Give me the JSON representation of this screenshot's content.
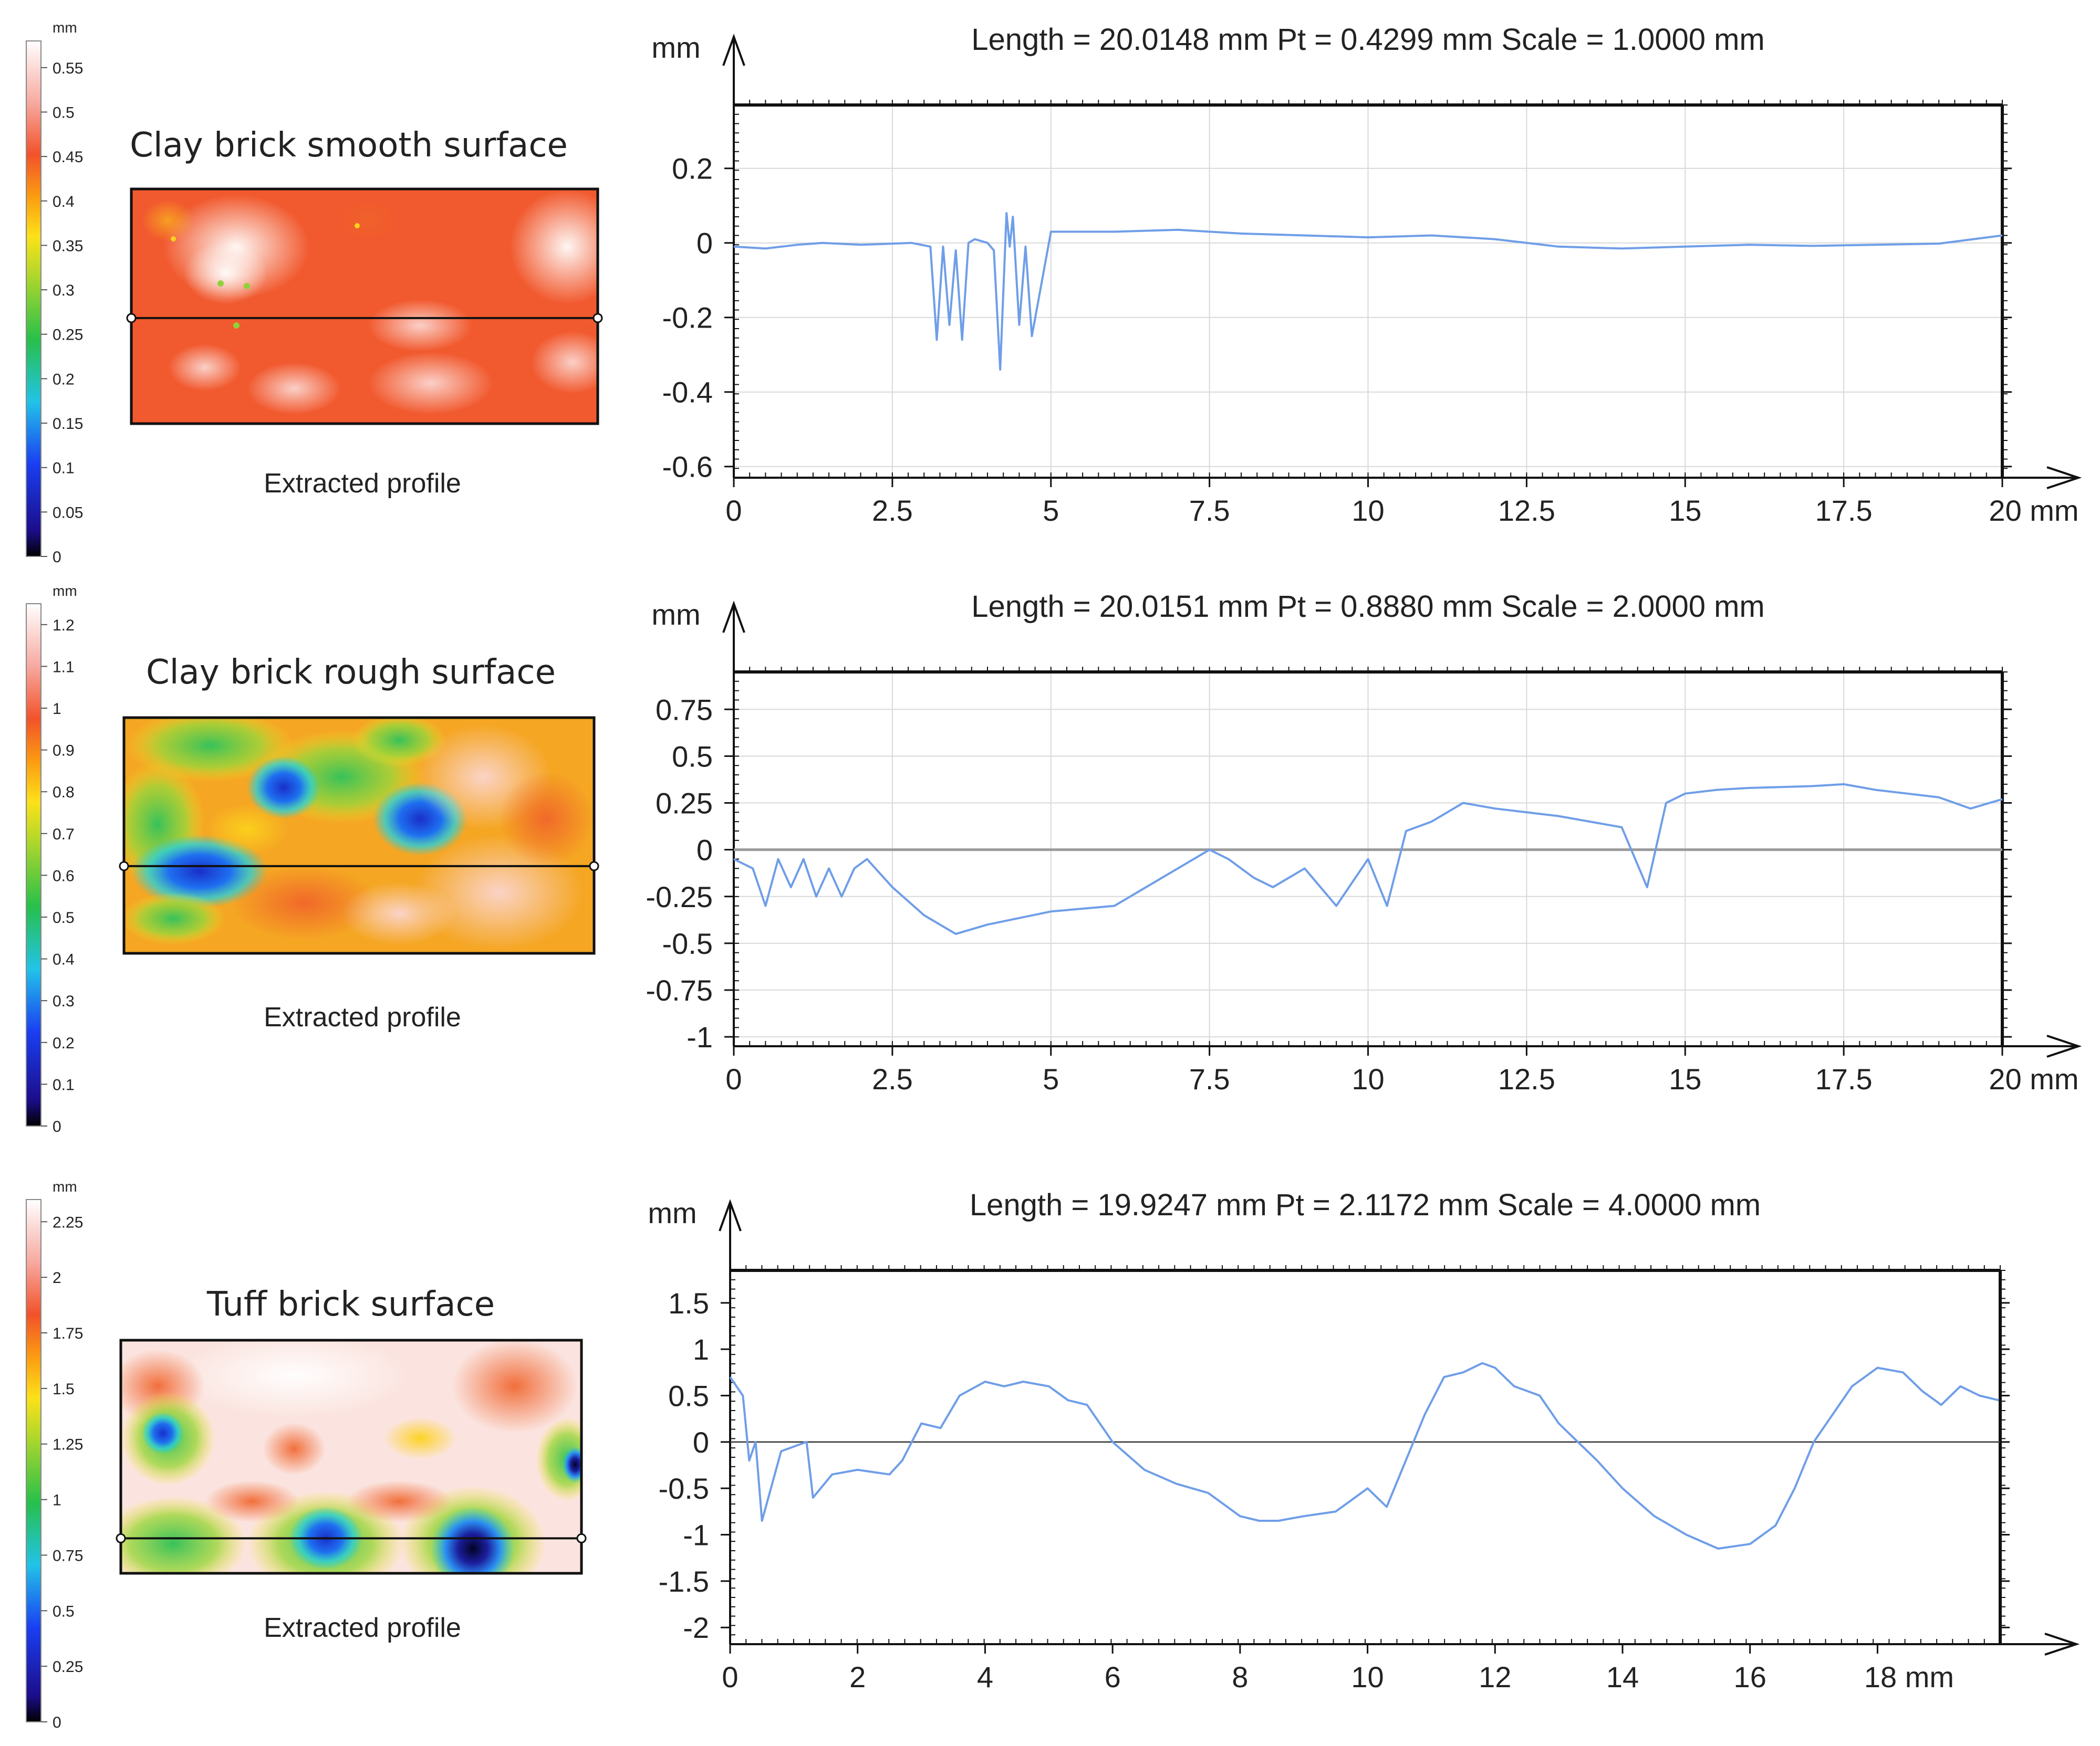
{
  "figure": {
    "panels": [
      {
        "title": "Clay brick smooth surface",
        "caption": "Extracted profile",
        "colorbar": {
          "unit": "mm",
          "ticks": [
            "0",
            "0.05",
            "0.1",
            "0.15",
            "0.2",
            "0.25",
            "0.3",
            "0.35",
            "0.4",
            "0.45",
            "0.5",
            "0.55"
          ],
          "max": 0.58
        },
        "profile_line_fraction": 0.55,
        "surface_palette": "smooth"
      },
      {
        "title": "Clay brick rough surface",
        "caption": "Extracted profile",
        "colorbar": {
          "unit": "mm",
          "ticks": [
            "0",
            "0.1",
            "0.2",
            "0.3",
            "0.4",
            "0.5",
            "0.6",
            "0.7",
            "0.8",
            "0.9",
            "1",
            "1.1",
            "1.2"
          ],
          "max": 1.25
        },
        "profile_line_fraction": 0.63,
        "surface_palette": "rough"
      },
      {
        "title": "Tuff brick surface",
        "caption": "Extracted profile",
        "colorbar": {
          "unit": "mm",
          "ticks": [
            "0",
            "0.25",
            "0.5",
            "0.75",
            "1",
            "1.25",
            "1.5",
            "1.75",
            "2",
            "2.25"
          ],
          "max": 2.35
        },
        "profile_line_fraction": 0.85,
        "surface_palette": "tuff"
      }
    ]
  },
  "colors": {
    "profile_line": "#6f9ee8",
    "axis": "#111111",
    "grid": "#d9d9d9",
    "zero_line": "#9a9a9a"
  },
  "chart_data": [
    {
      "type": "line",
      "title": "Length = 20.0148 mm  Pt = 0.4299 mm  Scale = 1.0000 mm",
      "ylabel": "mm",
      "xlabel_unit": "mm",
      "xlim": [
        0,
        20
      ],
      "ylim": [
        -0.63,
        0.37
      ],
      "xticks": [
        0,
        2.5,
        5,
        7.5,
        10,
        12.5,
        15,
        17.5,
        20
      ],
      "xtick_labels": [
        "0",
        "2.5",
        "5",
        "7.5",
        "10",
        "12.5",
        "15",
        "17.5",
        "20 mm"
      ],
      "yticks": [
        0.2,
        0,
        -0.2,
        -0.4,
        -0.6
      ],
      "ytick_labels": [
        "0.2",
        "0",
        "-0.2",
        "-0.4",
        "-0.6"
      ],
      "grid": true,
      "series": [
        {
          "name": "profile",
          "x": [
            0,
            0.5,
            1,
            1.4,
            2,
            2.8,
            3.1,
            3.2,
            3.3,
            3.4,
            3.5,
            3.6,
            3.7,
            3.8,
            4.0,
            4.1,
            4.2,
            4.3,
            4.35,
            4.4,
            4.5,
            4.6,
            4.7,
            5,
            6,
            7,
            8,
            9,
            10,
            11,
            12,
            13,
            14,
            15,
            16,
            17,
            18,
            19,
            20
          ],
          "y": [
            -0.01,
            -0.015,
            -0.005,
            0.0,
            -0.005,
            0.0,
            -0.01,
            -0.26,
            -0.01,
            -0.22,
            -0.02,
            -0.26,
            0.0,
            0.01,
            0.0,
            -0.02,
            -0.34,
            0.08,
            -0.01,
            0.07,
            -0.22,
            -0.01,
            -0.25,
            0.03,
            0.03,
            0.035,
            0.025,
            0.02,
            0.015,
            0.02,
            0.01,
            -0.01,
            -0.015,
            -0.01,
            -0.005,
            -0.008,
            -0.005,
            -0.002,
            0.02
          ]
        }
      ]
    },
    {
      "type": "line",
      "title": "Length = 20.0151 mm  Pt = 0.8880 mm  Scale = 2.0000 mm",
      "ylabel": "mm",
      "xlabel_unit": "mm",
      "xlim": [
        0,
        20
      ],
      "ylim": [
        -1.05,
        0.95
      ],
      "xticks": [
        0,
        2.5,
        5,
        7.5,
        10,
        12.5,
        15,
        17.5,
        20
      ],
      "xtick_labels": [
        "0",
        "2.5",
        "5",
        "7.5",
        "10",
        "12.5",
        "15",
        "17.5",
        "20 mm"
      ],
      "yticks": [
        0.75,
        0.5,
        0.25,
        0,
        -0.25,
        -0.5,
        -0.75,
        -1
      ],
      "ytick_labels": [
        "0.75",
        "0.5",
        "0.25",
        "0",
        "-0.25",
        "-0.5",
        "-0.75",
        "-1"
      ],
      "grid": true,
      "series": [
        {
          "name": "profile",
          "x": [
            0,
            0.3,
            0.5,
            0.7,
            0.9,
            1.1,
            1.3,
            1.5,
            1.7,
            1.9,
            2.1,
            2.5,
            3,
            3.5,
            4,
            5,
            6,
            6.5,
            7,
            7.5,
            7.8,
            8.2,
            8.5,
            9,
            9.5,
            10,
            10.3,
            10.6,
            11,
            11.5,
            12,
            13,
            14,
            14.4,
            14.7,
            15,
            15.5,
            16,
            17,
            17.5,
            18,
            18.5,
            19,
            19.5,
            20
          ],
          "y": [
            -0.05,
            -0.1,
            -0.3,
            -0.05,
            -0.2,
            -0.05,
            -0.25,
            -0.1,
            -0.25,
            -0.1,
            -0.05,
            -0.2,
            -0.35,
            -0.45,
            -0.4,
            -0.33,
            -0.3,
            -0.2,
            -0.1,
            0.0,
            -0.05,
            -0.15,
            -0.2,
            -0.1,
            -0.3,
            -0.05,
            -0.3,
            0.1,
            0.15,
            0.25,
            0.22,
            0.18,
            0.12,
            -0.2,
            0.25,
            0.3,
            0.32,
            0.33,
            0.34,
            0.35,
            0.32,
            0.3,
            0.28,
            0.22,
            0.27
          ]
        }
      ],
      "zero_baseline": true
    },
    {
      "type": "line",
      "title": "Length = 19.9247 mm  Pt = 2.1172 mm  Scale = 4.0000 mm",
      "ylabel": "mm",
      "xlabel_unit": "mm",
      "xlim": [
        0,
        19.9247
      ],
      "ylim": [
        -2.18,
        1.85
      ],
      "xticks": [
        0,
        2,
        4,
        6,
        8,
        10,
        12,
        14,
        16,
        18
      ],
      "xtick_labels": [
        "0",
        "2",
        "4",
        "6",
        "8",
        "10",
        "12",
        "14",
        "16",
        "18 mm"
      ],
      "yticks": [
        1.5,
        1,
        0.5,
        0,
        -0.5,
        -1,
        -1.5,
        -2
      ],
      "ytick_labels": [
        "1.5",
        "1",
        "0.5",
        "0",
        "-0.5",
        "-1",
        "-1.5",
        "-2"
      ],
      "grid": false,
      "series": [
        {
          "name": "profile",
          "x": [
            0,
            0.2,
            0.3,
            0.4,
            0.5,
            0.8,
            1.2,
            1.3,
            1.6,
            2,
            2.5,
            2.7,
            3,
            3.3,
            3.6,
            4,
            4.3,
            4.6,
            5,
            5.3,
            5.6,
            6,
            6.5,
            7,
            7.5,
            8,
            8.3,
            8.6,
            9,
            9.5,
            10,
            10.3,
            10.6,
            10.9,
            11.2,
            11.5,
            11.8,
            12,
            12.3,
            12.7,
            13,
            13.3,
            13.6,
            14,
            14.5,
            15,
            15.5,
            16,
            16.4,
            16.7,
            17,
            17.3,
            17.6,
            18,
            18.4,
            18.7,
            19,
            19.3,
            19.6,
            19.9
          ],
          "y": [
            0.7,
            0.5,
            -0.2,
            0.0,
            -0.85,
            -0.1,
            0.0,
            -0.6,
            -0.35,
            -0.3,
            -0.35,
            -0.2,
            0.2,
            0.15,
            0.5,
            0.65,
            0.6,
            0.65,
            0.6,
            0.45,
            0.4,
            0.0,
            -0.3,
            -0.45,
            -0.55,
            -0.8,
            -0.85,
            -0.85,
            -0.8,
            -0.75,
            -0.5,
            -0.7,
            -0.2,
            0.3,
            0.7,
            0.75,
            0.85,
            0.8,
            0.6,
            0.5,
            0.2,
            0.0,
            -0.2,
            -0.5,
            -0.8,
            -1.0,
            -1.15,
            -1.1,
            -0.9,
            -0.5,
            0.0,
            0.3,
            0.6,
            0.8,
            0.75,
            0.55,
            0.4,
            0.6,
            0.5,
            0.45
          ]
        }
      ],
      "zero_baseline": true
    }
  ]
}
